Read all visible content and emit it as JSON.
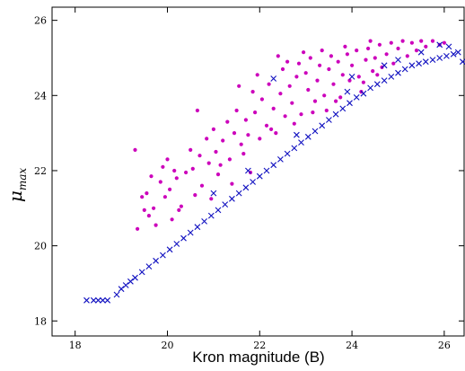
{
  "chart_data": {
    "type": "scatter",
    "title": "",
    "xlabel": "Kron magnitude (B)",
    "ylabel": {
      "base": "μ",
      "subscript": "max"
    },
    "xlim": [
      17.5,
      26.45
    ],
    "ylim": [
      17.6,
      26.35
    ],
    "x_ticks": [
      18,
      20,
      22,
      24,
      26
    ],
    "y_ticks": [
      18,
      20,
      22,
      24,
      26
    ],
    "x_tick_labels": [
      "18",
      "20",
      "22",
      "24",
      "26"
    ],
    "y_tick_labels": [
      "18",
      "20",
      "22",
      "24",
      "26"
    ],
    "grid": false,
    "legend": "none",
    "series": [
      {
        "marker": "dot",
        "color": "#cc00bb",
        "points": [
          [
            19.3,
            22.55
          ],
          [
            19.35,
            20.45
          ],
          [
            19.45,
            21.3
          ],
          [
            19.5,
            20.95
          ],
          [
            19.55,
            21.4
          ],
          [
            19.6,
            20.8
          ],
          [
            19.7,
            21.0
          ],
          [
            19.75,
            20.55
          ],
          [
            19.85,
            21.7
          ],
          [
            19.9,
            22.1
          ],
          [
            19.95,
            21.3
          ],
          [
            20.0,
            22.3
          ],
          [
            20.05,
            21.5
          ],
          [
            20.1,
            20.7
          ],
          [
            20.15,
            22.0
          ],
          [
            20.2,
            21.8
          ],
          [
            20.3,
            21.05
          ],
          [
            20.4,
            21.95
          ],
          [
            20.5,
            22.55
          ],
          [
            20.55,
            22.05
          ],
          [
            20.6,
            21.35
          ],
          [
            20.7,
            22.4
          ],
          [
            20.75,
            21.6
          ],
          [
            20.85,
            22.85
          ],
          [
            20.9,
            22.2
          ],
          [
            21.0,
            23.1
          ],
          [
            21.05,
            22.5
          ],
          [
            21.1,
            21.9
          ],
          [
            21.2,
            22.8
          ],
          [
            21.3,
            23.3
          ],
          [
            21.35,
            22.3
          ],
          [
            21.45,
            23.0
          ],
          [
            21.5,
            23.6
          ],
          [
            21.6,
            22.7
          ],
          [
            21.7,
            23.35
          ],
          [
            21.75,
            22.95
          ],
          [
            21.85,
            24.1
          ],
          [
            21.9,
            23.55
          ],
          [
            22.0,
            22.85
          ],
          [
            22.05,
            23.9
          ],
          [
            22.15,
            23.2
          ],
          [
            22.2,
            24.3
          ],
          [
            22.3,
            23.65
          ],
          [
            22.35,
            23.0
          ],
          [
            22.45,
            24.05
          ],
          [
            22.5,
            24.7
          ],
          [
            22.55,
            23.45
          ],
          [
            22.65,
            24.25
          ],
          [
            22.7,
            23.8
          ],
          [
            22.8,
            24.5
          ],
          [
            22.85,
            24.85
          ],
          [
            22.9,
            23.5
          ],
          [
            23.0,
            24.6
          ],
          [
            23.05,
            24.15
          ],
          [
            23.1,
            25.0
          ],
          [
            23.2,
            23.85
          ],
          [
            23.25,
            24.4
          ],
          [
            23.3,
            24.8
          ],
          [
            23.4,
            24.0
          ],
          [
            23.45,
            23.6
          ],
          [
            23.5,
            24.7
          ],
          [
            23.55,
            25.05
          ],
          [
            23.6,
            24.3
          ],
          [
            23.7,
            24.9
          ],
          [
            23.75,
            23.95
          ],
          [
            23.8,
            24.55
          ],
          [
            23.9,
            25.1
          ],
          [
            23.95,
            24.4
          ],
          [
            24.0,
            24.8
          ],
          [
            24.1,
            25.2
          ],
          [
            24.15,
            24.5
          ],
          [
            24.2,
            24.1
          ],
          [
            24.3,
            24.95
          ],
          [
            24.35,
            25.25
          ],
          [
            24.45,
            24.65
          ],
          [
            24.5,
            25.0
          ],
          [
            24.6,
            25.35
          ],
          [
            24.65,
            24.75
          ],
          [
            24.75,
            25.1
          ],
          [
            24.85,
            25.4
          ],
          [
            24.9,
            24.85
          ],
          [
            25.0,
            25.25
          ],
          [
            25.1,
            25.45
          ],
          [
            25.2,
            25.05
          ],
          [
            25.3,
            25.4
          ],
          [
            25.4,
            25.2
          ],
          [
            25.5,
            25.45
          ],
          [
            25.6,
            25.3
          ],
          [
            25.75,
            25.45
          ],
          [
            25.9,
            25.35
          ],
          [
            26.0,
            25.4
          ],
          [
            21.15,
            22.15
          ],
          [
            21.65,
            22.45
          ],
          [
            22.25,
            23.1
          ],
          [
            22.75,
            23.25
          ],
          [
            23.15,
            23.55
          ],
          [
            23.65,
            23.85
          ],
          [
            24.25,
            24.35
          ],
          [
            24.55,
            24.55
          ],
          [
            23.35,
            25.2
          ],
          [
            22.95,
            25.15
          ],
          [
            22.6,
            24.9
          ],
          [
            21.95,
            24.55
          ],
          [
            20.65,
            23.6
          ],
          [
            21.55,
            24.25
          ],
          [
            22.4,
            25.05
          ],
          [
            23.85,
            25.3
          ],
          [
            24.4,
            25.45
          ],
          [
            19.65,
            21.85
          ],
          [
            20.25,
            20.95
          ],
          [
            20.95,
            21.25
          ],
          [
            21.4,
            21.65
          ],
          [
            21.8,
            21.95
          ]
        ]
      },
      {
        "marker": "x",
        "color": "#1010c0",
        "points": [
          [
            18.25,
            18.55
          ],
          [
            18.4,
            18.55
          ],
          [
            18.5,
            18.55
          ],
          [
            18.6,
            18.55
          ],
          [
            18.7,
            18.55
          ],
          [
            18.9,
            18.7
          ],
          [
            19.0,
            18.85
          ],
          [
            19.1,
            18.95
          ],
          [
            19.2,
            19.05
          ],
          [
            19.3,
            19.15
          ],
          [
            19.45,
            19.3
          ],
          [
            19.6,
            19.45
          ],
          [
            19.75,
            19.6
          ],
          [
            19.9,
            19.75
          ],
          [
            20.05,
            19.9
          ],
          [
            20.2,
            20.05
          ],
          [
            20.35,
            20.2
          ],
          [
            20.5,
            20.35
          ],
          [
            20.65,
            20.5
          ],
          [
            20.8,
            20.65
          ],
          [
            20.95,
            20.8
          ],
          [
            21.1,
            20.95
          ],
          [
            21.25,
            21.1
          ],
          [
            21.4,
            21.25
          ],
          [
            21.55,
            21.4
          ],
          [
            21.7,
            21.55
          ],
          [
            21.85,
            21.7
          ],
          [
            22.0,
            21.85
          ],
          [
            22.15,
            22.0
          ],
          [
            22.3,
            22.15
          ],
          [
            22.45,
            22.3
          ],
          [
            22.6,
            22.45
          ],
          [
            22.75,
            22.6
          ],
          [
            22.9,
            22.75
          ],
          [
            23.05,
            22.9
          ],
          [
            23.2,
            23.05
          ],
          [
            23.35,
            23.2
          ],
          [
            23.5,
            23.35
          ],
          [
            23.65,
            23.5
          ],
          [
            23.8,
            23.65
          ],
          [
            23.95,
            23.8
          ],
          [
            24.1,
            23.95
          ],
          [
            24.25,
            24.05
          ],
          [
            24.4,
            24.2
          ],
          [
            24.55,
            24.3
          ],
          [
            24.7,
            24.4
          ],
          [
            24.85,
            24.5
          ],
          [
            25.0,
            24.6
          ],
          [
            25.15,
            24.7
          ],
          [
            25.3,
            24.8
          ],
          [
            25.45,
            24.85
          ],
          [
            25.6,
            24.9
          ],
          [
            25.75,
            24.95
          ],
          [
            25.9,
            25.0
          ],
          [
            26.05,
            25.05
          ],
          [
            26.2,
            25.1
          ],
          [
            26.4,
            24.9
          ],
          [
            21.0,
            21.4
          ],
          [
            21.75,
            22.0
          ],
          [
            22.3,
            24.45
          ],
          [
            24.0,
            24.5
          ],
          [
            25.0,
            24.95
          ],
          [
            25.9,
            25.35
          ],
          [
            26.1,
            25.3
          ],
          [
            22.8,
            22.95
          ],
          [
            23.9,
            24.1
          ],
          [
            24.7,
            24.8
          ],
          [
            25.5,
            25.15
          ],
          [
            26.3,
            25.15
          ]
        ]
      }
    ]
  }
}
